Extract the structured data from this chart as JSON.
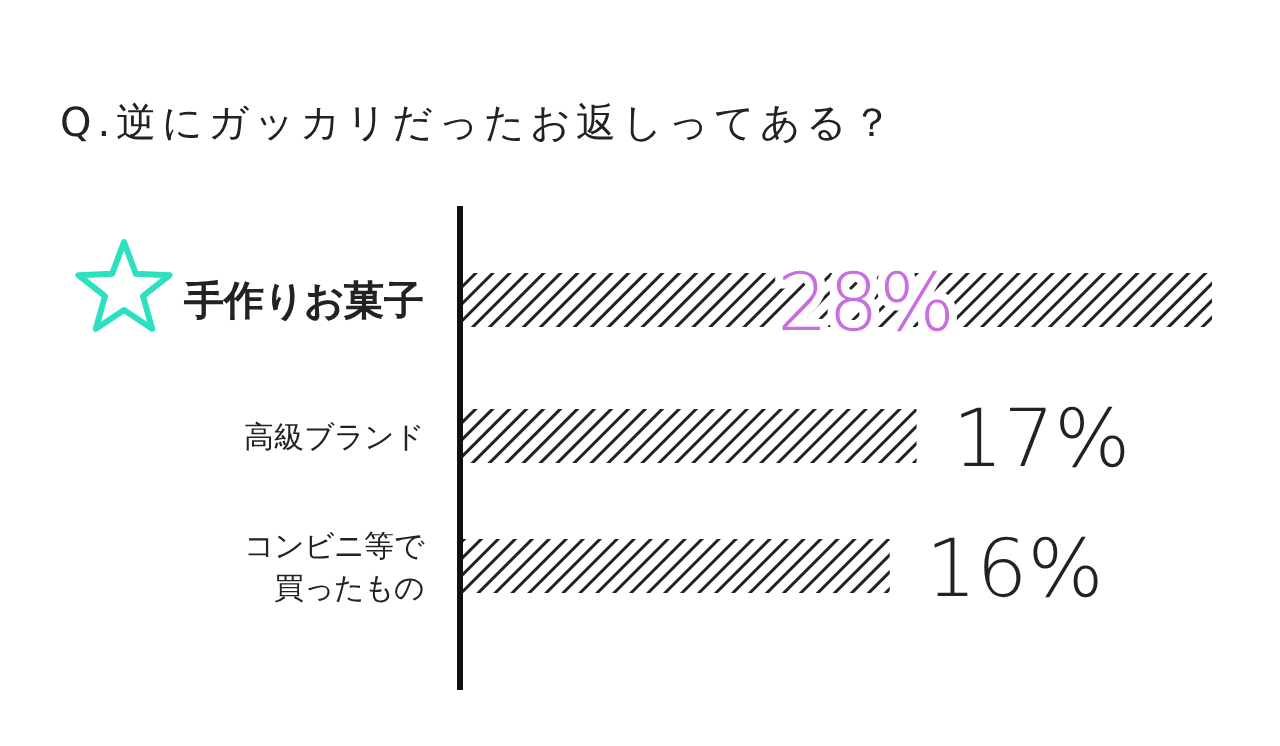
{
  "chart_data": {
    "type": "bar",
    "orientation": "horizontal",
    "title": "Q.逆にガッカリだったお返しってある？",
    "categories": [
      "手作りお菓子",
      "高級ブランド",
      "コンビニ等で買ったもの"
    ],
    "values": [
      28,
      17,
      16
    ],
    "value_labels": [
      "28%",
      "17%",
      "16%"
    ],
    "color": "#222222"
  }
}
